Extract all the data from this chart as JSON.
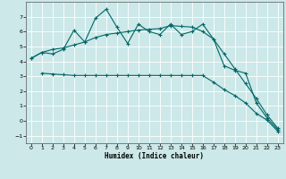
{
  "xlabel": "Humidex (Indice chaleur)",
  "bg_color": "#cce8e8",
  "grid_color": "#ffffff",
  "line_color": "#006666",
  "xlim": [
    -0.5,
    23.5
  ],
  "ylim": [
    -1.5,
    8.0
  ],
  "yticks": [
    -1,
    0,
    1,
    2,
    3,
    4,
    5,
    6,
    7
  ],
  "xticks": [
    0,
    1,
    2,
    3,
    4,
    5,
    6,
    7,
    8,
    9,
    10,
    11,
    12,
    13,
    14,
    15,
    16,
    17,
    18,
    19,
    20,
    21,
    22,
    23
  ],
  "line1_x": [
    0,
    1,
    2,
    3,
    4,
    5,
    6,
    7,
    8,
    9,
    10,
    11,
    12,
    13,
    14,
    15,
    16,
    17,
    18,
    19,
    20,
    21,
    22,
    23
  ],
  "line1_y": [
    4.2,
    4.6,
    4.5,
    4.8,
    6.1,
    5.3,
    6.9,
    7.5,
    6.3,
    5.2,
    6.5,
    6.0,
    5.8,
    6.5,
    5.8,
    6.0,
    6.5,
    5.5,
    3.7,
    3.4,
    3.2,
    1.2,
    0.2,
    -0.6
  ],
  "line2_x": [
    0,
    1,
    2,
    3,
    4,
    5,
    6,
    7,
    8,
    9,
    10,
    11,
    12,
    13,
    14,
    15,
    16,
    17,
    18,
    19,
    20,
    21,
    22,
    23
  ],
  "line2_y": [
    4.2,
    4.6,
    4.8,
    4.9,
    5.1,
    5.3,
    5.6,
    5.8,
    5.9,
    6.0,
    6.1,
    6.15,
    6.2,
    6.4,
    6.35,
    6.3,
    6.0,
    5.5,
    4.5,
    3.5,
    2.5,
    1.5,
    0.4,
    -0.5
  ],
  "line3_x": [
    1,
    2,
    3,
    4,
    5,
    6,
    7,
    8,
    9,
    10,
    11,
    12,
    13,
    14,
    15,
    16,
    17,
    18,
    19,
    20,
    21,
    22,
    23
  ],
  "line3_y": [
    3.2,
    3.15,
    3.1,
    3.05,
    3.05,
    3.05,
    3.05,
    3.05,
    3.05,
    3.05,
    3.05,
    3.05,
    3.05,
    3.05,
    3.05,
    3.05,
    2.6,
    2.1,
    1.7,
    1.2,
    0.5,
    0.05,
    -0.7
  ]
}
